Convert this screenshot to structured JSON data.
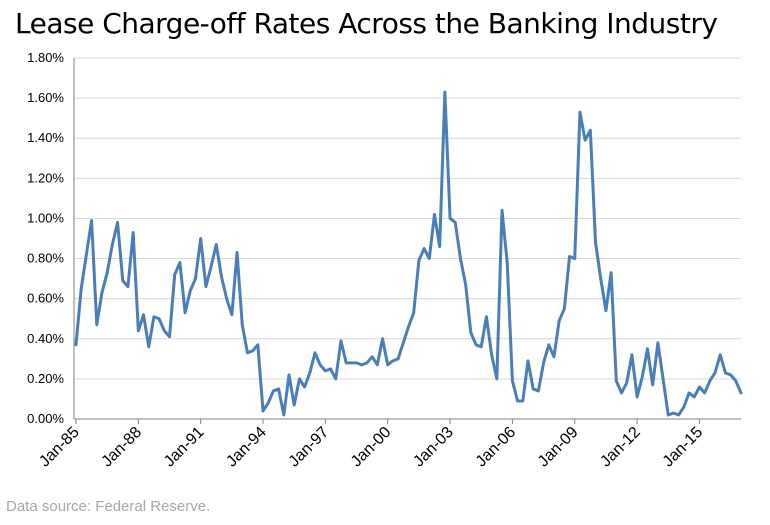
{
  "chart_data": {
    "type": "line",
    "title": "Lease Charge-off Rates Across the Banking Industry",
    "source": "Data source: Federal Reserve.",
    "ylim": [
      0,
      1.8
    ],
    "y_ticks": [
      "0.00%",
      "0.20%",
      "0.40%",
      "0.60%",
      "0.80%",
      "1.00%",
      "1.20%",
      "1.40%",
      "1.60%",
      "1.80%"
    ],
    "x_tick_labels": [
      "Jan-85",
      "Jan-88",
      "Jan-91",
      "Jan-94",
      "Jan-97",
      "Jan-00",
      "Jan-03",
      "Jan-06",
      "Jan-09",
      "Jan-12",
      "Jan-15"
    ],
    "x_start": "Jan-85",
    "x_end": "Oct-16",
    "grid": true,
    "line_color": "#4a7ebb",
    "series": [
      {
        "values": [
          0.37,
          0.65,
          0.82,
          0.99,
          0.47,
          0.63,
          0.73,
          0.87,
          0.98,
          0.69,
          0.66,
          0.93,
          0.44,
          0.52,
          0.36,
          0.51,
          0.5,
          0.44,
          0.41,
          0.72,
          0.78,
          0.53,
          0.64,
          0.7,
          0.9,
          0.66,
          0.76,
          0.87,
          0.71,
          0.6,
          0.52,
          0.83,
          0.47,
          0.33,
          0.34,
          0.37,
          0.04,
          0.08,
          0.14,
          0.15,
          0.02,
          0.22,
          0.07,
          0.2,
          0.16,
          0.23,
          0.33,
          0.27,
          0.24,
          0.25,
          0.2,
          0.39,
          0.28,
          0.28,
          0.28,
          0.27,
          0.28,
          0.31,
          0.27,
          0.4,
          0.27,
          0.29,
          0.3,
          0.38,
          0.46,
          0.53,
          0.79,
          0.85,
          0.8,
          1.02,
          0.86,
          1.63,
          1.0,
          0.98,
          0.8,
          0.67,
          0.43,
          0.37,
          0.36,
          0.51,
          0.32,
          0.2,
          1.04,
          0.78,
          0.19,
          0.09,
          0.09,
          0.29,
          0.15,
          0.14,
          0.28,
          0.37,
          0.31,
          0.49,
          0.55,
          0.81,
          0.8,
          1.53,
          1.39,
          1.44,
          0.88,
          0.7,
          0.54,
          0.73,
          0.19,
          0.13,
          0.18,
          0.32,
          0.11,
          0.21,
          0.35,
          0.17,
          0.38,
          0.2,
          0.02,
          0.03,
          0.02,
          0.06,
          0.13,
          0.11,
          0.16,
          0.13,
          0.19,
          0.23,
          0.32,
          0.23,
          0.22,
          0.19,
          0.13
        ]
      }
    ]
  }
}
